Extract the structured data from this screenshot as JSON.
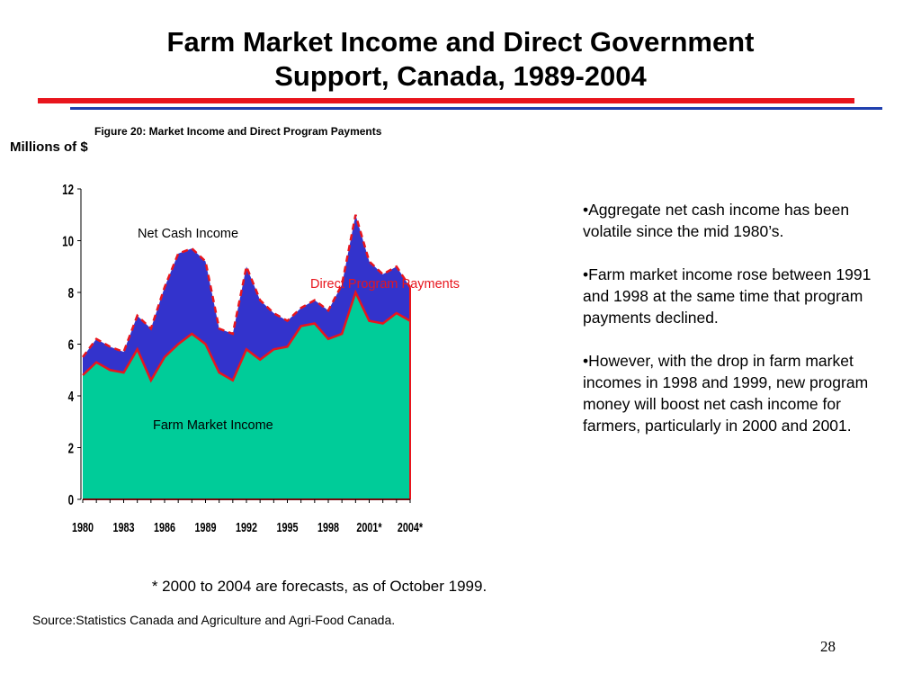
{
  "slide": {
    "title_line1": "Farm Market Income and Direct Government",
    "title_line2": "Support, Canada, 1989-2004",
    "figure_title": "Figure 20: Market Income and Direct Program Payments",
    "bullets": [
      "•Aggregate net cash income has been volatile since the mid 1980’s.",
      "•Farm market income rose between 1991 and 1998 at the same time that program payments declined.",
      "•However, with the drop in farm market incomes in 1998 and 1999, new program money will boost net cash income for farmers, particularly in 2000 and 2001."
    ],
    "footnote": "* 2000 to 2004 are forecasts, as of October 1999.",
    "source": "Source:Statistics Canada and Agriculture and Agri-Food Canada.",
    "page_number": "28"
  },
  "chart_data": {
    "type": "area",
    "ylabel": "Millions of $",
    "ylim": [
      0,
      12
    ],
    "yticks": [
      0,
      2,
      4,
      6,
      8,
      10,
      12
    ],
    "x": [
      1980,
      1981,
      1982,
      1983,
      1984,
      1985,
      1986,
      1987,
      1988,
      1989,
      1990,
      1991,
      1992,
      1993,
      1994,
      1995,
      1996,
      1997,
      1998,
      1999,
      2000,
      2001,
      2002,
      2003,
      2004
    ],
    "xtick_labels": [
      "1980",
      "1983",
      "1986",
      "1989",
      "1992",
      "1995",
      "1998",
      "2001*",
      "2004*"
    ],
    "xtick_positions": [
      1980,
      1983,
      1986,
      1989,
      1992,
      1995,
      1998,
      2001,
      2004
    ],
    "series": [
      {
        "name": "Farm Market Income",
        "color": "#00cc99",
        "values": [
          4.8,
          5.3,
          5.0,
          4.9,
          5.8,
          4.6,
          5.5,
          6.0,
          6.4,
          6.0,
          4.9,
          4.6,
          5.8,
          5.4,
          5.8,
          5.9,
          6.7,
          6.8,
          6.2,
          6.4,
          8.0,
          6.9,
          6.8,
          7.2,
          6.9
        ]
      },
      {
        "name": "Net Cash Income",
        "color": "#3333cc",
        "values": [
          5.5,
          6.2,
          5.9,
          5.7,
          7.1,
          6.6,
          8.2,
          9.5,
          9.7,
          9.2,
          6.6,
          6.4,
          9.0,
          7.7,
          7.2,
          6.9,
          7.4,
          7.7,
          7.3,
          8.3,
          11.0,
          9.2,
          8.7,
          9.0,
          8.2
        ]
      }
    ],
    "line_color": "#e8151d",
    "annotations": [
      {
        "text": "Net Cash Income",
        "color": "#000000"
      },
      {
        "text": "Direct Program Payments",
        "color": "#e8151d"
      },
      {
        "text": "Farm Market Income",
        "color": "#000000"
      }
    ]
  }
}
